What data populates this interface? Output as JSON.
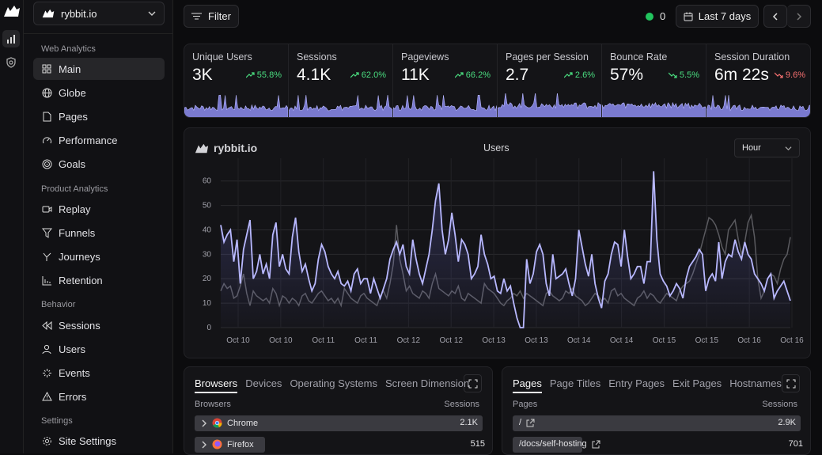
{
  "rail": {
    "logo": "rybbit-logo",
    "icons": [
      "analytics-icon",
      "shield-icon"
    ]
  },
  "site": {
    "name": "rybbit.io"
  },
  "nav": {
    "web_analytics": "Web Analytics",
    "product_analytics": "Product Analytics",
    "behavior": "Behavior",
    "settings": "Settings",
    "items": {
      "main": "Main",
      "globe": "Globe",
      "pages": "Pages",
      "performance": "Performance",
      "goals": "Goals",
      "replay": "Replay",
      "funnels": "Funnels",
      "journeys": "Journeys",
      "retention": "Retention",
      "sessions": "Sessions",
      "users": "Users",
      "events": "Events",
      "errors": "Errors",
      "site_settings": "Site Settings"
    }
  },
  "toolbar": {
    "filter": "Filter",
    "live_count": "0",
    "range": "Last 7 days",
    "live_color": "#22c55e"
  },
  "stats": [
    {
      "label": "Unique Users",
      "value": "3K",
      "change": "55.8%",
      "dir": "up"
    },
    {
      "label": "Sessions",
      "value": "4.1K",
      "change": "62.0%",
      "dir": "up"
    },
    {
      "label": "Pageviews",
      "value": "11K",
      "change": "66.2%",
      "dir": "up"
    },
    {
      "label": "Pages per Session",
      "value": "2.7",
      "change": "2.6%",
      "dir": "up"
    },
    {
      "label": "Bounce Rate",
      "value": "57%",
      "change": "5.5%",
      "dir": "down-good"
    },
    {
      "label": "Session Duration",
      "value": "6m 22s",
      "change": "9.6%",
      "dir": "down"
    }
  ],
  "chart": {
    "brand": "rybbit.io",
    "title": "Users",
    "granularity": "Hour",
    "colors": {
      "current": "#b8b8ff",
      "previous": "#5a5a5f"
    }
  },
  "chart_data": {
    "type": "line",
    "title": "Users",
    "ylim": [
      0,
      68
    ],
    "yticks": [
      0,
      10,
      20,
      30,
      40,
      50,
      60
    ],
    "xticks": [
      "Oct 10",
      "Oct 10",
      "Oct 11",
      "Oct 11",
      "Oct 12",
      "Oct 12",
      "Oct 13",
      "Oct 13",
      "Oct 14",
      "Oct 14",
      "Oct 15",
      "Oct 15",
      "Oct 16",
      "Oct 16"
    ],
    "grid": true,
    "series": [
      {
        "values": [
          42,
          35,
          38,
          40,
          27,
          36,
          18,
          32,
          38,
          44,
          20,
          23,
          30,
          22,
          26,
          20,
          38,
          43,
          25,
          30,
          24,
          22,
          37,
          45,
          31,
          23,
          26,
          20,
          15,
          18,
          28,
          34,
          31,
          25,
          22,
          20,
          23,
          18,
          17,
          19,
          15,
          22,
          24,
          18,
          20,
          20,
          14,
          20,
          16,
          12,
          16,
          20,
          28,
          32,
          35,
          30,
          34,
          25,
          22,
          36,
          28,
          22,
          18,
          24,
          30,
          40,
          52,
          59,
          40,
          30,
          36,
          47,
          38,
          27,
          36,
          34,
          30,
          20,
          22,
          25,
          38,
          30,
          26,
          20,
          21,
          15,
          14,
          20,
          15,
          17,
          10,
          4,
          0,
          0,
          28,
          18,
          22,
          31,
          34,
          30,
          18,
          13,
          30,
          20,
          21,
          22,
          24,
          18,
          13,
          20,
          40,
          33,
          26,
          21,
          30,
          18,
          12,
          8,
          19,
          22,
          30,
          35,
          34,
          25,
          40,
          29,
          20,
          22,
          25,
          25,
          18,
          27,
          27,
          64,
          36,
          22,
          19,
          17,
          13,
          15,
          18,
          16,
          12,
          20,
          25,
          27,
          29,
          32,
          30,
          15,
          20,
          22,
          19,
          35,
          20,
          27,
          30,
          29,
          36,
          31,
          28,
          35,
          30,
          28,
          22,
          20,
          18,
          15,
          20,
          22,
          12,
          15,
          17,
          19,
          15,
          11
        ]
      },
      {
        "values": [
          15,
          18,
          16,
          17,
          12,
          13,
          17,
          22,
          14,
          9,
          15,
          13,
          12,
          11,
          12,
          10,
          16,
          14,
          9,
          13,
          12,
          10,
          12,
          11,
          9,
          13,
          14,
          11,
          10,
          12,
          14,
          15,
          13,
          11,
          12,
          10,
          12,
          9,
          16,
          14,
          12,
          11,
          10,
          13,
          14,
          12,
          11,
          10,
          9,
          13,
          15,
          12,
          18,
          26,
          42,
          28,
          22,
          15,
          17,
          14,
          13,
          12,
          15,
          14,
          12,
          18,
          22,
          16,
          15,
          14,
          13,
          15,
          14,
          17,
          12,
          11,
          14,
          13,
          12,
          11,
          10,
          18,
          16,
          15,
          14,
          12,
          10,
          9,
          11,
          12,
          14,
          13,
          15,
          12,
          14,
          13,
          12,
          11,
          10,
          9,
          14,
          15,
          13,
          12,
          11,
          12,
          15,
          14,
          16,
          13,
          12,
          11,
          9,
          10,
          12,
          14,
          13,
          11,
          12,
          10,
          15,
          16,
          13,
          14,
          12,
          11,
          10,
          9,
          12,
          13,
          15,
          12,
          14,
          13,
          11,
          10,
          12,
          14,
          13,
          12,
          11,
          15,
          17,
          18,
          19,
          22,
          26,
          30,
          35,
          40,
          45,
          44,
          42,
          38,
          33,
          30,
          40,
          42,
          44,
          36,
          30,
          35,
          43,
          46,
          37,
          20,
          12,
          15,
          20,
          22,
          21,
          18,
          24,
          28,
          30,
          37
        ]
      }
    ]
  },
  "browsers_panel": {
    "tabs": [
      "Browsers",
      "Devices",
      "Operating Systems",
      "Screen Dimension"
    ],
    "col_left": "Browsers",
    "col_right": "Sessions",
    "rows": [
      {
        "name": "Chrome",
        "value": "2.1K",
        "fraction": 1.0
      },
      {
        "name": "Firefox",
        "value": "515",
        "fraction": 0.245
      }
    ]
  },
  "pages_panel": {
    "tabs": [
      "Pages",
      "Page Titles",
      "Entry Pages",
      "Exit Pages",
      "Hostnames"
    ],
    "col_left": "Pages",
    "col_right": "Sessions",
    "rows": [
      {
        "name": "/",
        "value": "2.9K",
        "fraction": 1.0
      },
      {
        "name": "/docs/self-hosting",
        "value": "701",
        "fraction": 0.242
      }
    ]
  }
}
